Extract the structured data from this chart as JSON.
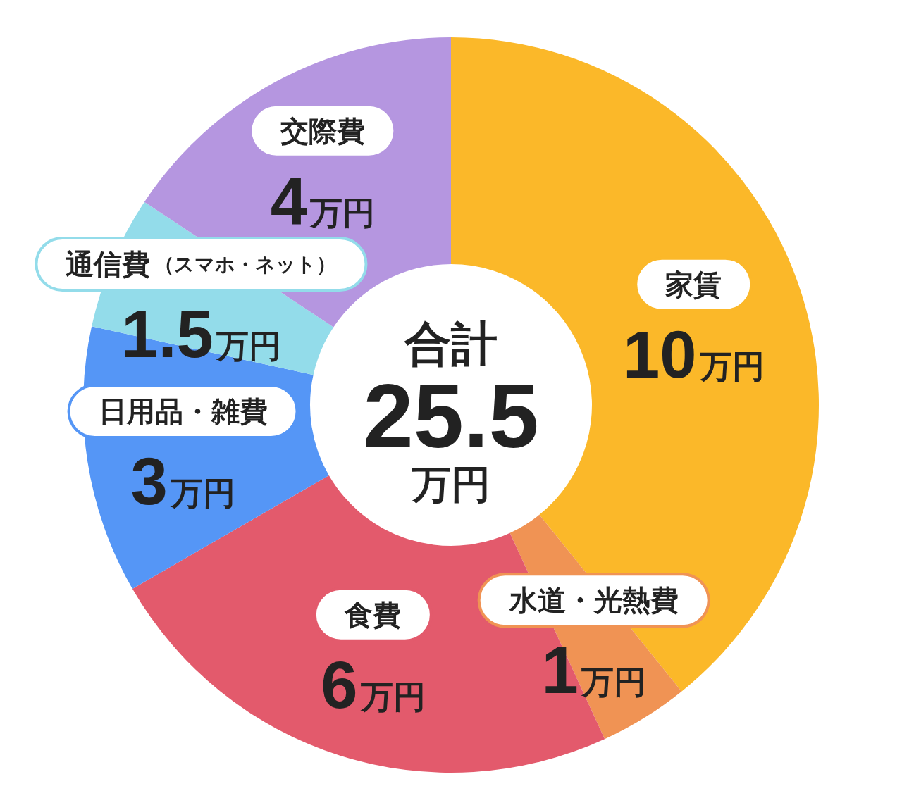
{
  "chart_data": {
    "type": "donut",
    "categories": [
      "家賃",
      "水道・光熱費",
      "食費",
      "日用品・雑費",
      "通信費（スマホ・ネット）",
      "交際費"
    ],
    "values": [
      10,
      1,
      6,
      3,
      1.5,
      4
    ],
    "colors": [
      "#fbb829",
      "#f09354",
      "#e35a6c",
      "#5596f6",
      "#93dcea",
      "#b596e0"
    ],
    "value_labels": [
      "10万円",
      "1万円",
      "6万円",
      "3万円",
      "1.5万円",
      "4万円"
    ],
    "annotations": [
      "合計",
      "25.5",
      "万円"
    ]
  }
}
